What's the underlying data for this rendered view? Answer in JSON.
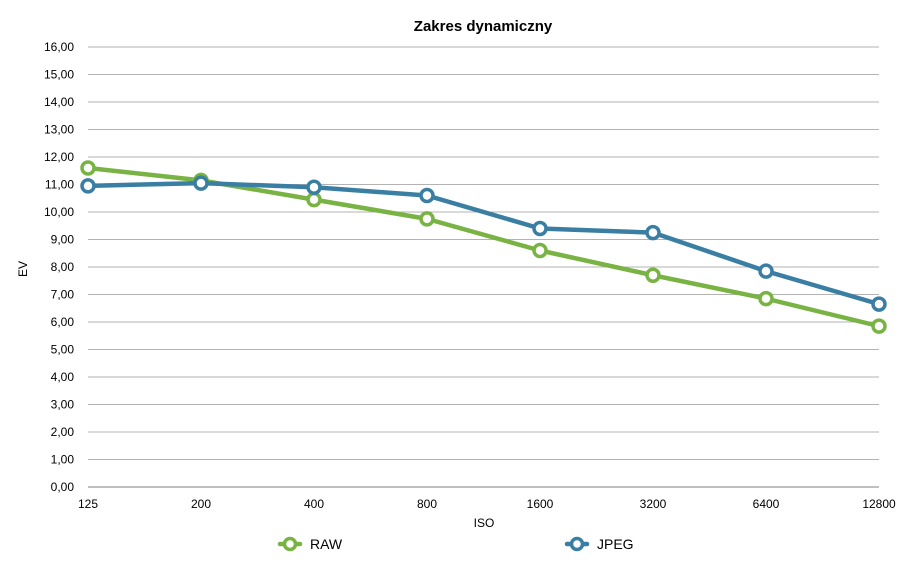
{
  "chart_data": {
    "type": "line",
    "title": "Zakres dynamiczny",
    "xlabel": "ISO",
    "ylabel": "EV",
    "categories": [
      "125",
      "200",
      "400",
      "800",
      "1600",
      "3200",
      "6400",
      "12800"
    ],
    "ylim": [
      0,
      16
    ],
    "ytick_step": 1,
    "ytick_labels": [
      "0,00",
      "1,00",
      "2,00",
      "3,00",
      "4,00",
      "5,00",
      "6,00",
      "7,00",
      "8,00",
      "9,00",
      "10,00",
      "11,00",
      "12,00",
      "13,00",
      "14,00",
      "15,00",
      "16,00"
    ],
    "grid": true,
    "legend_position": "bottom",
    "series": [
      {
        "name": "RAW",
        "color": "#78b343",
        "values": [
          11.6,
          11.15,
          10.45,
          9.75,
          8.6,
          7.7,
          6.85,
          5.85
        ]
      },
      {
        "name": "JPEG",
        "color": "#3a7fa3",
        "values": [
          10.95,
          11.05,
          10.9,
          10.6,
          9.4,
          9.25,
          7.85,
          6.65
        ]
      }
    ]
  }
}
